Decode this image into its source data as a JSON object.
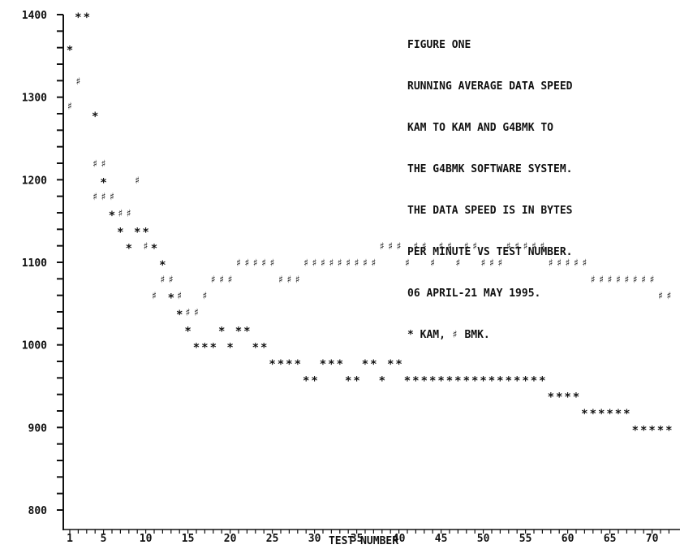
{
  "chart_data": {
    "type": "scatter",
    "xlabel": "TEST NUMBER",
    "ylabel": "",
    "xlim": [
      1,
      72
    ],
    "ylim": [
      800,
      1400
    ],
    "x_ticks": [
      "1",
      "5",
      "10",
      "15",
      "20",
      "25",
      "30",
      "35",
      "40",
      "45",
      "50",
      "55",
      "60",
      "65",
      "70"
    ],
    "y_ticks": [
      "1400",
      "1300",
      "1200",
      "1100",
      "1000",
      "900",
      "800"
    ],
    "annotation": [
      "FIGURE ONE",
      "RUNNING AVERAGE DATA SPEED",
      "KAM TO KAM AND G4BMK TO",
      "THE G4BMK SOFTWARE SYSTEM.",
      "THE DATA SPEED IS IN BYTES",
      "PER MINUTE VS TEST NUMBER.",
      "06 APRIL-21 MAY 1995.",
      "* KAM, ♯ BMK."
    ],
    "series": [
      {
        "name": "KAM",
        "marker": "*",
        "x": [
          2,
          3,
          1,
          4,
          5,
          6,
          7,
          8,
          9,
          10,
          11,
          12,
          13,
          14,
          15,
          16,
          17,
          18,
          19,
          20,
          21,
          22,
          23,
          24,
          25,
          26,
          27,
          28,
          29,
          30,
          31,
          32,
          33,
          34,
          35,
          36,
          37,
          38,
          39,
          40,
          41,
          42,
          43,
          44,
          45,
          46,
          47,
          48,
          49,
          50,
          51,
          52,
          53,
          54,
          55,
          56,
          57,
          58,
          59,
          60,
          61,
          62,
          63,
          64,
          65,
          66,
          67,
          68,
          69,
          70,
          71,
          72
        ],
        "y": [
          1400,
          1400,
          1360,
          1280,
          1200,
          1160,
          1140,
          1120,
          1140,
          1140,
          1120,
          1100,
          1060,
          1040,
          1020,
          1000,
          1000,
          1000,
          1020,
          1000,
          1020,
          1020,
          1000,
          1000,
          980,
          980,
          980,
          980,
          960,
          960,
          980,
          980,
          980,
          960,
          960,
          980,
          980,
          960,
          980,
          980,
          960,
          960,
          960,
          960,
          960,
          960,
          960,
          960,
          960,
          960,
          960,
          960,
          960,
          960,
          960,
          960,
          960,
          940,
          940,
          940,
          940,
          920,
          920,
          920,
          920,
          920,
          920,
          900,
          900,
          900,
          900,
          900
        ]
      },
      {
        "name": "BMK",
        "marker": "♯",
        "x": [
          2,
          1,
          4,
          5,
          4,
          5,
          6,
          7,
          8,
          9,
          10,
          11,
          12,
          13,
          14,
          15,
          16,
          17,
          18,
          19,
          20,
          21,
          22,
          23,
          24,
          25,
          26,
          27,
          28,
          29,
          30,
          31,
          32,
          33,
          34,
          35,
          36,
          37,
          38,
          39,
          40,
          41,
          42,
          43,
          44,
          45,
          46,
          47,
          48,
          49,
          50,
          51,
          52,
          53,
          54,
          55,
          56,
          57,
          58,
          59,
          60,
          61,
          62,
          63,
          64,
          65,
          66,
          67,
          68,
          69,
          70,
          71,
          72
        ],
        "y": [
          1320,
          1290,
          1220,
          1220,
          1180,
          1180,
          1180,
          1160,
          1160,
          1200,
          1120,
          1060,
          1080,
          1080,
          1060,
          1040,
          1040,
          1060,
          1080,
          1080,
          1080,
          1100,
          1100,
          1100,
          1100,
          1100,
          1080,
          1080,
          1080,
          1100,
          1100,
          1100,
          1100,
          1100,
          1100,
          1100,
          1100,
          1100,
          1120,
          1120,
          1120,
          1100,
          1120,
          1120,
          1100,
          1120,
          1120,
          1100,
          1120,
          1120,
          1100,
          1100,
          1100,
          1120,
          1120,
          1120,
          1120,
          1120,
          1100,
          1100,
          1100,
          1100,
          1100,
          1080,
          1080,
          1080,
          1080,
          1080,
          1080,
          1080,
          1080,
          1060,
          1060
        ]
      }
    ]
  }
}
